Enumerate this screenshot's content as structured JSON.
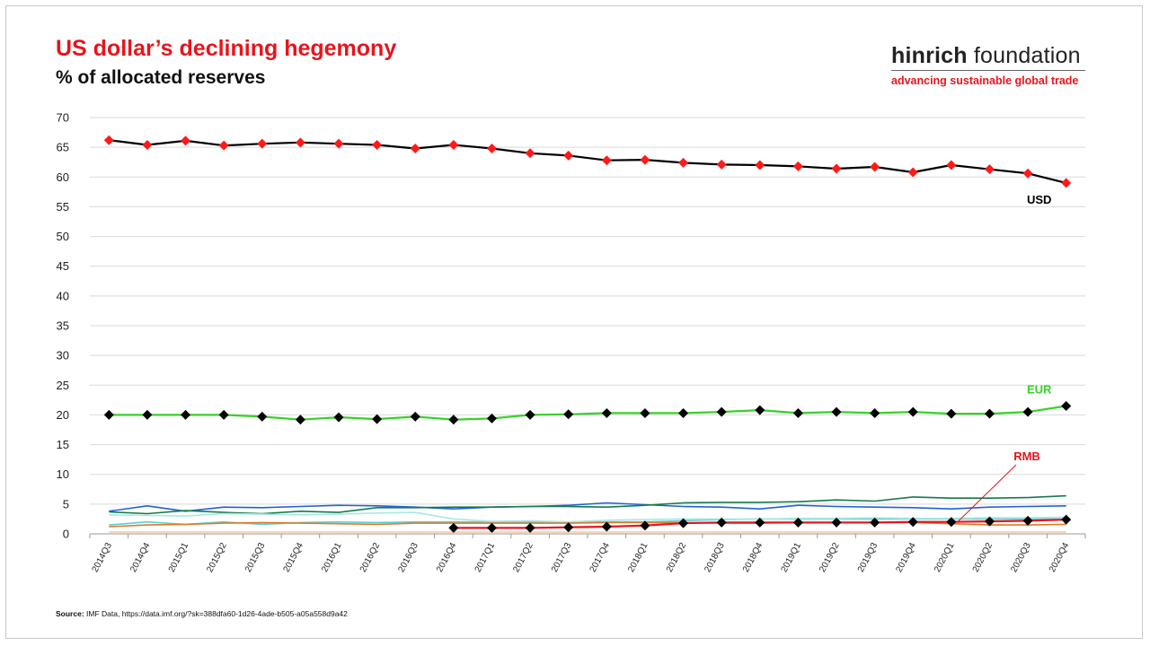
{
  "header": {
    "title": "US dollar’s declining hegemony",
    "subtitle": "% of allocated reserves"
  },
  "logo": {
    "name_bold": "hinrich",
    "name_regular": "foundation",
    "tagline": "advancing sustainable global trade"
  },
  "source": {
    "label": "Source:",
    "text": "IMF Data, https://data.imf.org/?sk=388dfa60-1d26-4ade-b505-a05a558d9a42"
  },
  "colors": {
    "title": "#e8141c",
    "usd_line": "#000000",
    "usd_marker": "#ff1a1a",
    "eur_line": "#39d02a",
    "eur_marker": "#000000",
    "rmb_line": "#e8141c",
    "rmb_marker": "#000000"
  },
  "chart_data": {
    "type": "line",
    "ylim": [
      0,
      70
    ],
    "yticks": [
      0,
      5,
      10,
      15,
      20,
      25,
      30,
      35,
      40,
      45,
      50,
      55,
      60,
      65,
      70
    ],
    "grid": true,
    "categories": [
      "2014Q3",
      "2014Q4",
      "2015Q1",
      "2015Q2",
      "2015Q3",
      "2015Q4",
      "2016Q1",
      "2016Q2",
      "2016Q3",
      "2016Q4",
      "2017Q1",
      "2017Q2",
      "2017Q3",
      "2017Q4",
      "2018Q1",
      "2018Q2",
      "2018Q3",
      "2018Q4",
      "2019Q1",
      "2019Q2",
      "2019Q3",
      "2019Q4",
      "2020Q1",
      "2020Q2",
      "2020Q3",
      "2020Q4"
    ],
    "series": [
      {
        "name": "USD",
        "color": "#000000",
        "marker": "diamond",
        "marker_color": "#ff1a1a",
        "values": [
          66.2,
          65.4,
          66.1,
          65.3,
          65.6,
          65.8,
          65.6,
          65.4,
          64.8,
          65.4,
          64.8,
          64.0,
          63.6,
          62.8,
          62.9,
          62.4,
          62.1,
          62.0,
          61.8,
          61.4,
          61.7,
          60.8,
          62.0,
          61.3,
          60.6,
          59.0
        ]
      },
      {
        "name": "EUR",
        "color": "#39d02a",
        "marker": "diamond",
        "marker_color": "#000000",
        "values": [
          20.0,
          20.0,
          20.0,
          20.0,
          19.7,
          19.2,
          19.6,
          19.3,
          19.7,
          19.2,
          19.4,
          20.0,
          20.1,
          20.3,
          20.3,
          20.3,
          20.5,
          20.8,
          20.3,
          20.5,
          20.3,
          20.5,
          20.2,
          20.2,
          20.5,
          21.5
        ]
      },
      {
        "name": "RMB",
        "color": "#e8141c",
        "marker": "diamond",
        "marker_color": "#000000",
        "values": [
          null,
          null,
          null,
          null,
          null,
          null,
          null,
          null,
          null,
          1.0,
          1.0,
          1.0,
          1.1,
          1.2,
          1.4,
          1.8,
          1.9,
          1.9,
          1.9,
          1.9,
          1.9,
          2.0,
          2.0,
          2.1,
          2.2,
          2.4
        ]
      },
      {
        "name": "",
        "color": "#2062d6",
        "marker": "none",
        "values": [
          3.8,
          4.7,
          3.8,
          4.5,
          4.4,
          4.6,
          4.8,
          4.7,
          4.5,
          4.2,
          4.5,
          4.6,
          4.8,
          5.2,
          4.9,
          4.6,
          4.5,
          4.2,
          4.8,
          4.6,
          4.5,
          4.4,
          4.2,
          4.5,
          4.6,
          4.7
        ]
      },
      {
        "name": "",
        "color": "#147a4b",
        "marker": "none",
        "values": [
          3.7,
          3.4,
          3.9,
          3.6,
          3.4,
          3.8,
          3.6,
          4.4,
          4.4,
          4.5,
          4.5,
          4.6,
          4.6,
          4.5,
          4.8,
          5.2,
          5.3,
          5.3,
          5.4,
          5.7,
          5.5,
          6.2,
          6.0,
          6.0,
          6.1,
          6.4
        ]
      },
      {
        "name": "",
        "color": "#5ad0d8",
        "marker": "none",
        "values": [
          1.5,
          2.0,
          1.6,
          2.0,
          1.6,
          1.9,
          2.0,
          1.9,
          2.0,
          2.0,
          2.0,
          2.0,
          2.0,
          2.0,
          2.0,
          2.2,
          2.4,
          2.5,
          2.5,
          2.5,
          2.5,
          2.5,
          2.5,
          2.5,
          2.5,
          2.5
        ]
      },
      {
        "name": "",
        "color": "#a8e8e4",
        "marker": "none",
        "values": [
          3.2,
          3.1,
          3.0,
          3.4,
          3.3,
          3.2,
          3.3,
          3.5,
          3.6,
          2.5,
          2.1,
          2.2,
          2.0,
          2.3,
          2.4,
          2.5,
          2.5,
          2.5,
          2.6,
          2.6,
          2.7,
          2.6,
          2.6,
          2.7,
          2.7,
          2.8
        ]
      },
      {
        "name": "",
        "color": "#e07828",
        "marker": "none",
        "values": [
          1.2,
          1.5,
          1.6,
          1.8,
          1.9,
          1.8,
          1.7,
          1.6,
          1.8,
          1.8,
          1.8,
          1.8,
          1.8,
          1.9,
          1.9,
          1.9,
          1.8,
          1.8,
          1.9,
          1.9,
          1.9,
          1.9,
          1.7,
          1.5,
          1.5,
          1.6
        ]
      },
      {
        "name": "",
        "color": "#f5c8a0",
        "marker": "none",
        "values": [
          0.3,
          0.3,
          0.3,
          0.3,
          0.3,
          0.3,
          0.3,
          0.3,
          0.3,
          0.3,
          0.3,
          0.3,
          0.3,
          0.3,
          0.3,
          0.3,
          0.3,
          0.3,
          0.3,
          0.3,
          0.3,
          0.3,
          0.3,
          0.3,
          0.3,
          0.3
        ]
      }
    ],
    "annotations": [
      {
        "text": "USD",
        "color": "#000000",
        "series": "USD"
      },
      {
        "text": "EUR",
        "color": "#39d02a",
        "series": "EUR"
      },
      {
        "text": "RMB",
        "color": "#e8141c",
        "series": "RMB",
        "callout": true
      }
    ]
  }
}
